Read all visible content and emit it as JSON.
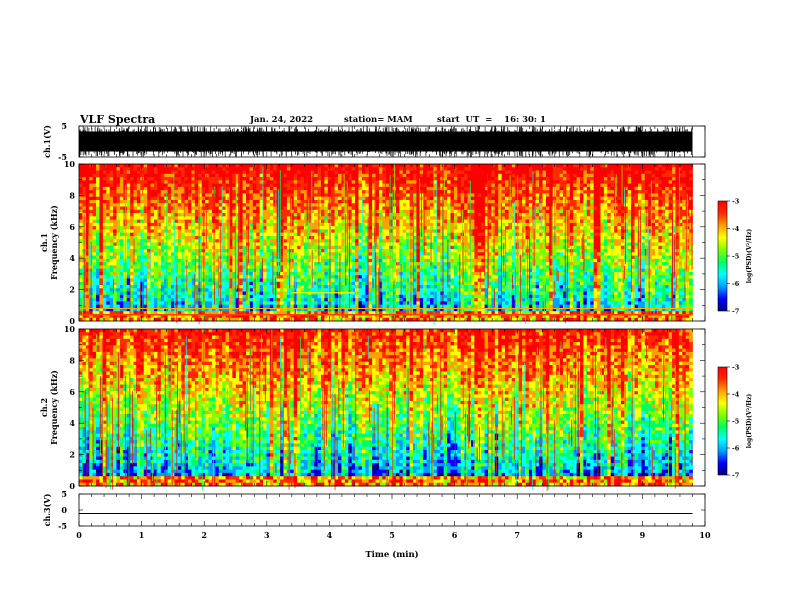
{
  "header": {
    "title": "VLF Spectra",
    "date": "Jan. 24, 2022",
    "station": "station= MAM",
    "start": "start  UT  =    16: 30: 1"
  },
  "colors": {
    "spectrum": [
      "#000080",
      "#0000ff",
      "#00a0ff",
      "#00ffff",
      "#00ff60",
      "#80ff00",
      "#ffff00",
      "#ffa000",
      "#ff2a00",
      "#ff0000"
    ]
  },
  "chart_data": [
    {
      "type": "line",
      "panel": "ch1-waveform",
      "ylabel": "ch.1(V)",
      "ylim": [
        -5,
        5
      ],
      "yticks": [
        "5",
        "-5"
      ],
      "xlim": [
        0,
        10
      ],
      "description_values": {
        "amplitude_min": -5,
        "amplitude_max": 5
      }
    },
    {
      "type": "heatmap",
      "panel": "ch1-spectrogram",
      "ylabel": "ch.1\nFrequency  (kHz)",
      "ylabel_line1": "ch.1",
      "ylabel_line2": "Frequency  (kHz)",
      "ylim": [
        0,
        10
      ],
      "yticks": [
        "0",
        "2",
        "4",
        "6",
        "8",
        "10"
      ],
      "xlim": [
        0,
        9.8
      ],
      "colorbar": {
        "label": "log(PSD)(V²/Hz)",
        "ticks": [
          "-3",
          "-4",
          "-5",
          "-6",
          "-7"
        ],
        "range": [
          -7,
          -3
        ]
      }
    },
    {
      "type": "heatmap",
      "panel": "ch2-spectrogram",
      "ylabel": "ch.2\nFrequency  (kHz)",
      "ylabel_line1": "ch.2",
      "ylabel_line2": "Frequency  (kHz)",
      "ylim": [
        0,
        10
      ],
      "yticks": [
        "0",
        "2",
        "4",
        "6",
        "8",
        "10"
      ],
      "xlim": [
        0,
        9.8
      ],
      "colorbar": {
        "label": "log(PSD)(V²/Hz)",
        "ticks": [
          "-3",
          "-4",
          "-5",
          "-6",
          "-7"
        ],
        "range": [
          -7,
          -3
        ]
      }
    },
    {
      "type": "line",
      "panel": "ch3-waveform",
      "ylabel": "ch.3(V)",
      "ylim": [
        -5,
        5
      ],
      "yticks": [
        "5",
        "0",
        "-5"
      ],
      "x": [
        0,
        9.8
      ],
      "y": [
        -1.1,
        -1.1
      ]
    }
  ],
  "xaxis": {
    "label": "Time  (min)",
    "ticks": [
      "0",
      "1",
      "2",
      "3",
      "4",
      "5",
      "6",
      "7",
      "8",
      "9",
      "10"
    ],
    "range": [
      0,
      10
    ]
  }
}
